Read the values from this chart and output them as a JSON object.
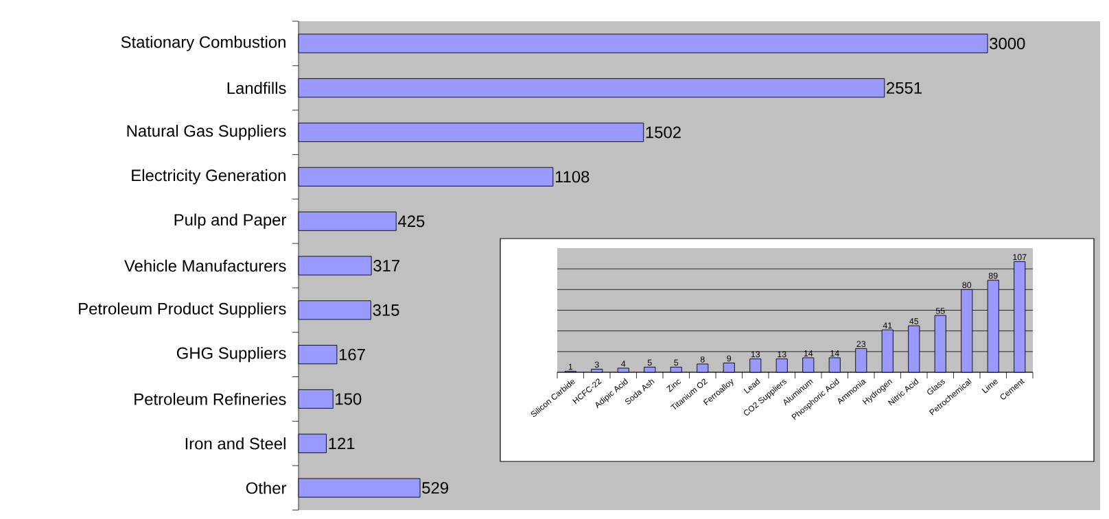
{
  "chart_data": [
    {
      "type": "bar",
      "orientation": "horizontal",
      "categories": [
        "Stationary Combustion",
        "Landfills",
        "Natural Gas Suppliers",
        "Electricity Generation",
        "Pulp and Paper",
        "Vehicle Manufacturers",
        "Petroleum Product Suppliers",
        "GHG Suppliers",
        "Petroleum Refineries",
        "Iron and Steel",
        "Other"
      ],
      "values": [
        3000,
        2551,
        1502,
        1108,
        425,
        317,
        315,
        167,
        150,
        121,
        529
      ],
      "color": "#9999ff",
      "xlim": [
        0,
        3490
      ],
      "data_labels": true,
      "tick_labels": "y"
    },
    {
      "type": "bar",
      "categories": [
        "Silicon Carbide",
        "HCFC-22",
        "Adipic Acid",
        "Soda Ash",
        "Zinc",
        "Titanium O2",
        "Ferroalloy",
        "Lead",
        "CO2 Suppliers",
        "Aluminum",
        "Phosphoric Acid",
        "Ammonia",
        "Hydrogen",
        "Nitric Acid",
        "Glass",
        "Petrochemical",
        "Lime",
        "Cement"
      ],
      "values": [
        1,
        3,
        4,
        5,
        5,
        8,
        9,
        13,
        13,
        14,
        14,
        23,
        41,
        45,
        55,
        80,
        89,
        107
      ],
      "color": "#9999ff",
      "ylim": [
        0,
        120
      ],
      "yticks": [
        {
          "value": 0,
          "label": null
        },
        {
          "value": 20,
          "label": null
        },
        {
          "value": 40,
          "label": null
        },
        {
          "value": 60,
          "label": null
        },
        {
          "value": 80,
          "label": null
        },
        {
          "value": 100,
          "label": null
        }
      ],
      "grid": "y",
      "data_labels": true,
      "tick_labels": "x"
    }
  ]
}
